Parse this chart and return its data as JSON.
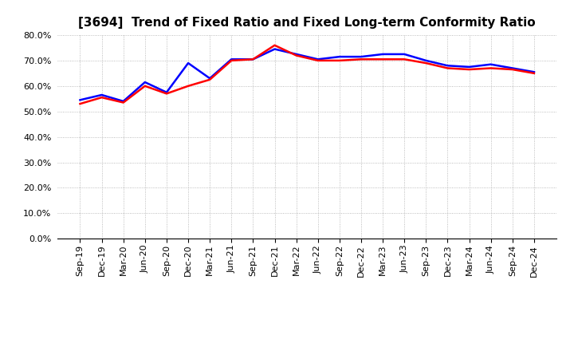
{
  "title": "[3694]  Trend of Fixed Ratio and Fixed Long-term Conformity Ratio",
  "labels": [
    "Sep-19",
    "Dec-19",
    "Mar-20",
    "Jun-20",
    "Sep-20",
    "Dec-20",
    "Mar-21",
    "Jun-21",
    "Sep-21",
    "Dec-21",
    "Mar-22",
    "Jun-22",
    "Sep-22",
    "Dec-22",
    "Mar-23",
    "Jun-23",
    "Sep-23",
    "Dec-23",
    "Mar-24",
    "Jun-24",
    "Sep-24",
    "Dec-24"
  ],
  "fixed_ratio": [
    54.5,
    56.5,
    54.0,
    61.5,
    57.5,
    69.0,
    63.0,
    70.5,
    70.5,
    74.5,
    72.5,
    70.5,
    71.5,
    71.5,
    72.5,
    72.5,
    70.0,
    68.0,
    67.5,
    68.5,
    67.0,
    65.5
  ],
  "fixed_lt_ratio": [
    53.0,
    55.5,
    53.5,
    60.0,
    57.0,
    60.0,
    62.5,
    70.0,
    70.5,
    76.0,
    72.0,
    70.0,
    70.0,
    70.5,
    70.5,
    70.5,
    69.0,
    67.0,
    66.5,
    67.0,
    66.5,
    65.0
  ],
  "ylim": [
    0,
    80
  ],
  "yticks": [
    0.0,
    10.0,
    20.0,
    30.0,
    40.0,
    50.0,
    60.0,
    70.0,
    80.0
  ],
  "fixed_ratio_color": "#0000FF",
  "fixed_lt_ratio_color": "#FF0000",
  "background_color": "#FFFFFF",
  "grid_color": "#AAAAAA",
  "line_width": 1.8,
  "title_fontsize": 11,
  "tick_fontsize": 8,
  "legend_fontsize": 9
}
